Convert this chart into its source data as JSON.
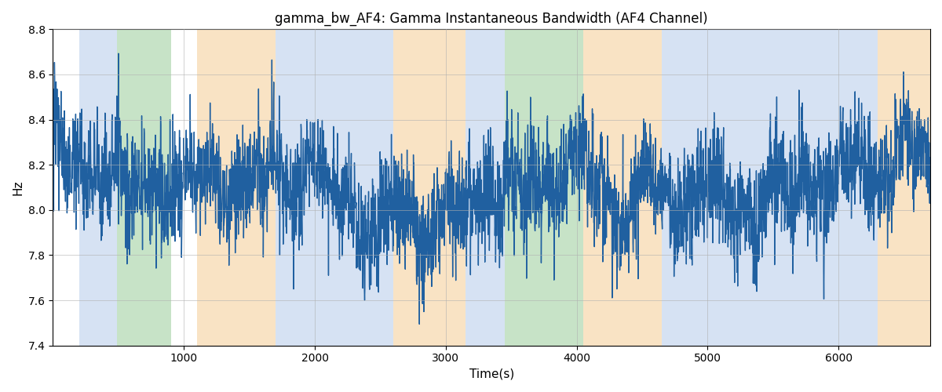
{
  "title": "gamma_bw_AF4: Gamma Instantaneous Bandwidth (AF4 Channel)",
  "xlabel": "Time(s)",
  "ylabel": "Hz",
  "ylim": [
    7.4,
    8.8
  ],
  "xlim": [
    0,
    6700
  ],
  "line_color": "#2060a0",
  "line_width": 1.0,
  "background_color": "#ffffff",
  "grid_color": "#b0b0b0",
  "bands": [
    {
      "xmin": 200,
      "xmax": 490,
      "color": "#aec6e8",
      "alpha": 0.5
    },
    {
      "xmin": 490,
      "xmax": 900,
      "color": "#90c990",
      "alpha": 0.5
    },
    {
      "xmin": 1100,
      "xmax": 1700,
      "color": "#f5c98a",
      "alpha": 0.5
    },
    {
      "xmin": 1700,
      "xmax": 2600,
      "color": "#aec6e8",
      "alpha": 0.5
    },
    {
      "xmin": 2600,
      "xmax": 3150,
      "color": "#f5c98a",
      "alpha": 0.5
    },
    {
      "xmin": 3150,
      "xmax": 3450,
      "color": "#aec6e8",
      "alpha": 0.5
    },
    {
      "xmin": 3450,
      "xmax": 4050,
      "color": "#90c990",
      "alpha": 0.5
    },
    {
      "xmin": 4050,
      "xmax": 4650,
      "color": "#f5c98a",
      "alpha": 0.5
    },
    {
      "xmin": 4650,
      "xmax": 6300,
      "color": "#aec6e8",
      "alpha": 0.5
    },
    {
      "xmin": 6300,
      "xmax": 6700,
      "color": "#f5c98a",
      "alpha": 0.5
    }
  ],
  "n_points": 3350,
  "x_max": 6700,
  "mean": 8.1,
  "noise_std": 0.13,
  "seed": 12345
}
